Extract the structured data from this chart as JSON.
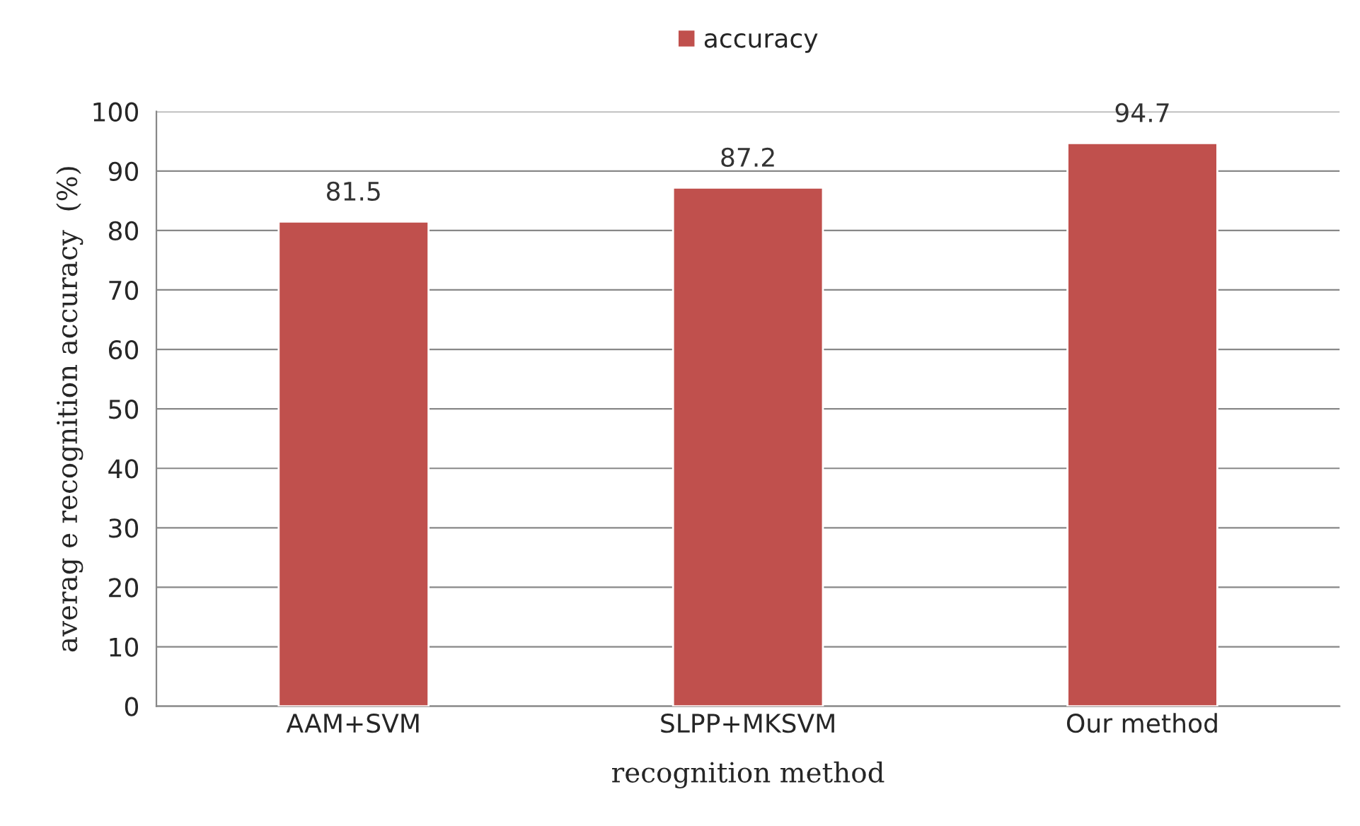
{
  "chart_data": {
    "type": "bar",
    "xlabel": "recognition method",
    "ylabel": "averag e recognition accuracy  (%)",
    "categories": [
      "AAM+SVM",
      "SLPP+MKSVM",
      "Our method"
    ],
    "series": [
      {
        "name": "accuracy",
        "color": "#c0504d",
        "values": [
          81.5,
          87.2,
          94.7
        ]
      }
    ],
    "ylim": [
      0,
      100
    ],
    "yticks": [
      0,
      10,
      20,
      30,
      40,
      50,
      60,
      70,
      80,
      90,
      100
    ],
    "grid": "y",
    "legend": "top",
    "data_labels": true
  }
}
